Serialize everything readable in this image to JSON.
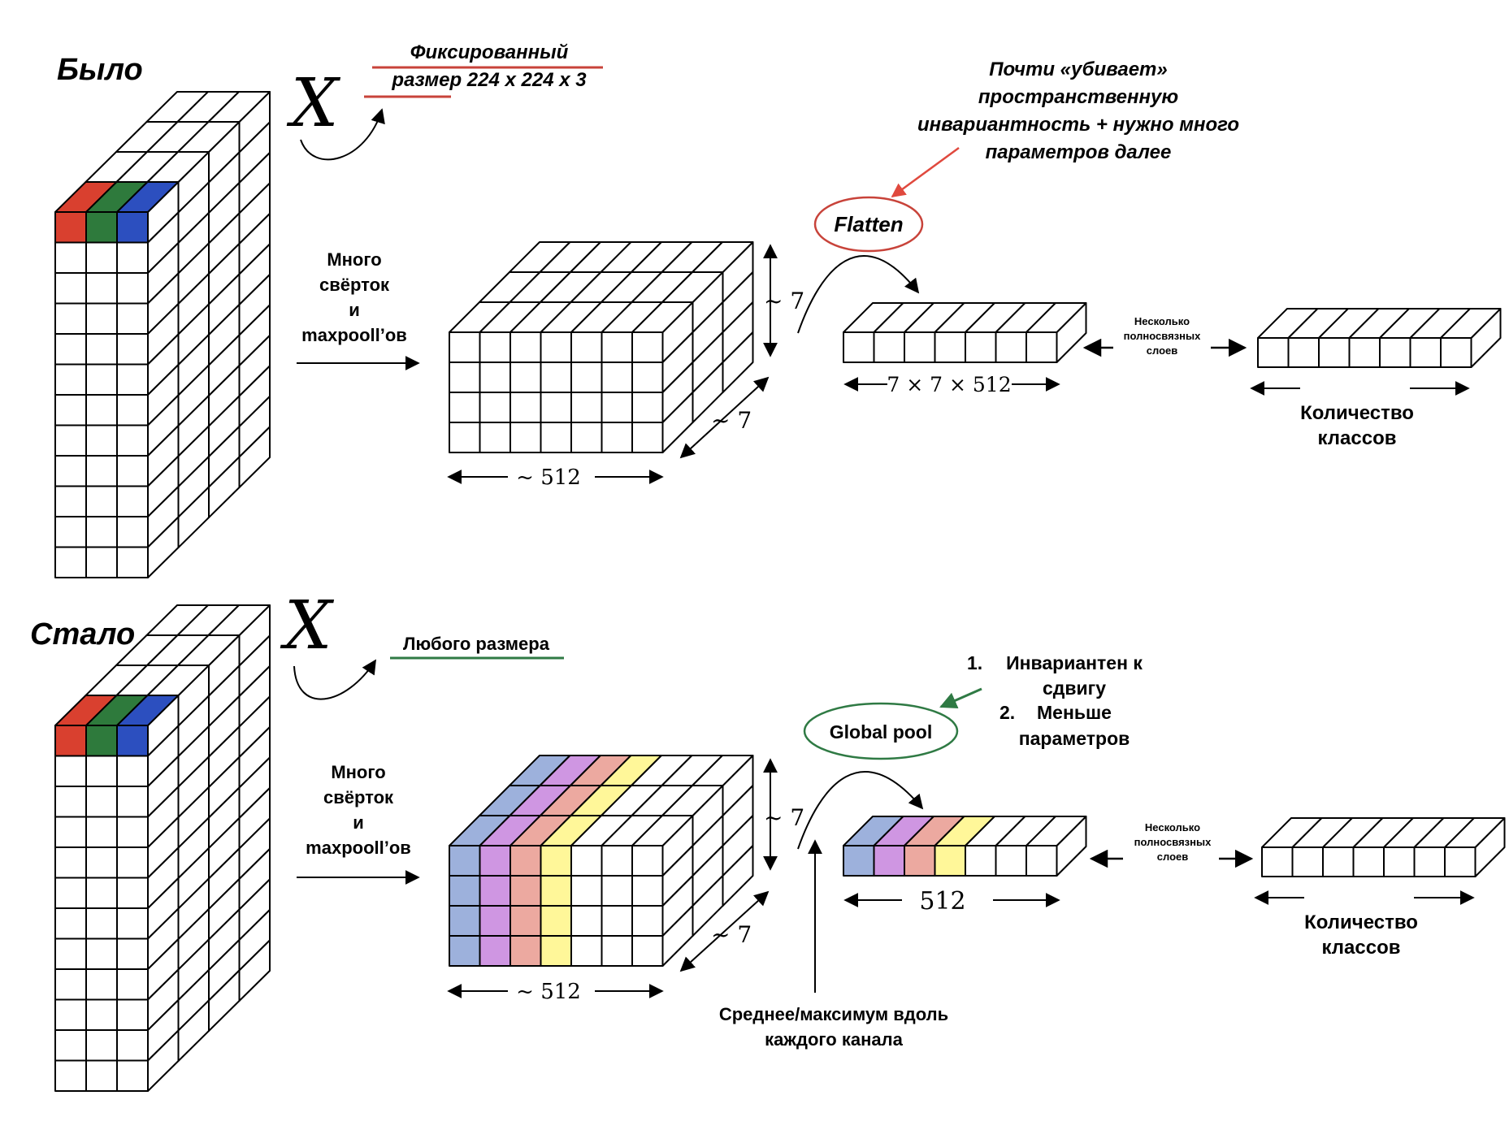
{
  "top": {
    "label": "Было",
    "input_symbol": "X",
    "input_note_line1": "Фиксированный",
    "input_note_line2": "размер 224 x 224 x 3",
    "conv_label": [
      "Много",
      "свёрток",
      "и",
      "maxpooll’ов"
    ],
    "feature_height_label": "~ 7",
    "feature_depth_label": "~ 7",
    "feature_width_label": "~ 512",
    "op_label": "Flatten",
    "op_note": [
      "Почти «убивает»",
      "пространственную",
      "инвариантность + нужно много",
      "параметров далее"
    ],
    "vector_label": "7 × 7 × 512",
    "fc_label": [
      "Несколько",
      "полносвязных",
      "слоев"
    ],
    "classes_label": [
      "Количество",
      "классов"
    ]
  },
  "bottom": {
    "label": "Стало",
    "input_symbol": "X",
    "input_note": "Любого размера",
    "conv_label": [
      "Много",
      "свёрток",
      "и",
      "maxpooll’ов"
    ],
    "feature_height_label": "~ 7",
    "feature_depth_label": "~ 7",
    "feature_width_label": "~ 512",
    "op_label": "Global pool",
    "op_note": [
      {
        "num": "1.",
        "text": [
          "Инвариантен к",
          "сдвигу"
        ]
      },
      {
        "num": "2.",
        "text": [
          "Меньше",
          "параметров"
        ]
      }
    ],
    "pool_note": [
      "Среднее/максимум вдоль",
      "каждого канала"
    ],
    "vector_label": "512",
    "fc_label": [
      "Несколько",
      "полносвязных",
      "слоев"
    ],
    "classes_label": [
      "Количество",
      "классов"
    ]
  },
  "colors": {
    "rgb_red": "#d9402f",
    "rgb_green": "#2e7a3c",
    "rgb_blue": "#2c4fbf",
    "channel_colors": [
      "#9db1dc",
      "#cf96e2",
      "#eca9a0",
      "#fff799"
    ],
    "underline_red": "#c8433a",
    "underline_green": "#2f7a44",
    "ellipse_red": "#c8433a",
    "ellipse_green": "#2f7a44",
    "arrow_red": "#e0493e",
    "arrow_green": "#2f7a44"
  }
}
